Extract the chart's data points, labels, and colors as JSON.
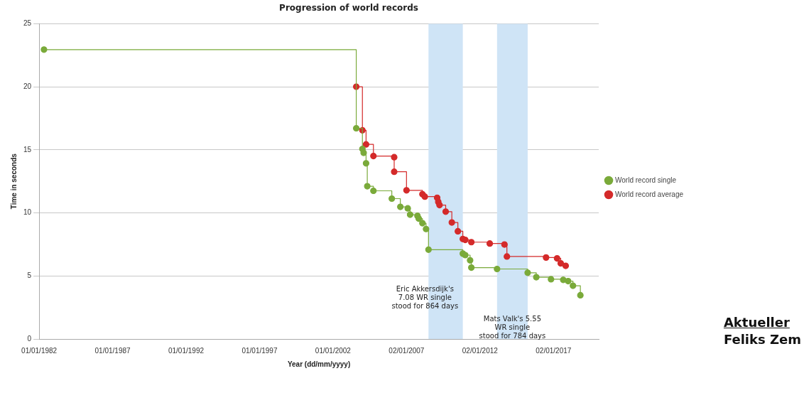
{
  "chart_data": {
    "type": "step",
    "title": "Progression of world records",
    "xlabel": "Year (dd/mm/yyyy)",
    "ylabel": "Time in seconds",
    "xlim": [
      "1982-01-01",
      "2020-02-01"
    ],
    "xticks": [
      {
        "value": "1982-01-01",
        "label": "01/01/1982"
      },
      {
        "value": "1987-01-01",
        "label": "01/01/1987"
      },
      {
        "value": "1992-01-01",
        "label": "01/01/1992"
      },
      {
        "value": "1997-01-01",
        "label": "01/01/1997"
      },
      {
        "value": "2002-01-01",
        "label": "01/01/2002"
      },
      {
        "value": "2007-01-02",
        "label": "02/01/2007"
      },
      {
        "value": "2012-01-02",
        "label": "02/01/2012"
      },
      {
        "value": "2017-01-02",
        "label": "02/01/2017"
      }
    ],
    "ylim": [
      0,
      25
    ],
    "yticks": [
      0,
      5,
      10,
      15,
      20,
      25
    ],
    "grid": "y",
    "legend": "right",
    "marker": "circle",
    "series": [
      {
        "name": "World record single",
        "color": "#7aaa3a",
        "x": [
          "1982-05",
          "2003-08",
          "2004-01",
          "2004-02",
          "2004-04",
          "2004-05",
          "2004-10",
          "2006-01",
          "2006-08",
          "2007-02",
          "2007-04",
          "2007-10",
          "2007-11",
          "2008-02",
          "2008-05",
          "2008-07",
          "2010-11",
          "2011-01",
          "2011-05",
          "2011-06",
          "2013-03",
          "2015-04",
          "2015-11",
          "2016-11",
          "2017-09",
          "2018-01",
          "2018-05",
          "2018-11"
        ],
        "values": [
          22.95,
          16.71,
          15.07,
          14.76,
          13.93,
          12.11,
          11.75,
          11.13,
          10.48,
          10.36,
          9.86,
          9.77,
          9.55,
          9.18,
          8.72,
          7.08,
          6.77,
          6.65,
          6.24,
          5.66,
          5.55,
          5.25,
          4.9,
          4.74,
          4.69,
          4.59,
          4.22,
          3.47
        ]
      },
      {
        "name": "World record average",
        "color": "#d42a2a",
        "x": [
          "2003-08",
          "2004-01",
          "2004-04",
          "2004-10",
          "2006-03",
          "2006-03",
          "2007-01",
          "2008-02",
          "2008-04",
          "2009-02",
          "2009-03",
          "2009-04",
          "2009-09",
          "2010-02",
          "2010-07",
          "2010-11",
          "2011-01",
          "2011-06",
          "2012-09",
          "2013-09",
          "2013-11",
          "2016-07",
          "2017-04",
          "2017-07",
          "2017-11"
        ],
        "values": [
          20.0,
          16.55,
          15.43,
          14.51,
          14.42,
          13.26,
          11.79,
          11.48,
          11.29,
          11.2,
          10.87,
          10.62,
          10.1,
          9.24,
          8.54,
          7.93,
          7.86,
          7.68,
          7.57,
          7.49,
          6.54,
          6.46,
          6.39,
          6.0,
          5.8
        ]
      }
    ],
    "bands": [
      {
        "axis": "x",
        "from": "2008-07",
        "to": "2010-11",
        "label": "Eric Akkersdijk's\n7.08 WR single\nstood for 864 days",
        "color": "#cfe4f6"
      },
      {
        "axis": "x",
        "from": "2013-03",
        "to": "2015-04",
        "label": "Mats Valk's 5.55\nWR single\nstood for 784 days",
        "color": "#cfe4f6"
      }
    ],
    "annotations": [
      "Aktueller\nFeliks Zem"
    ]
  }
}
